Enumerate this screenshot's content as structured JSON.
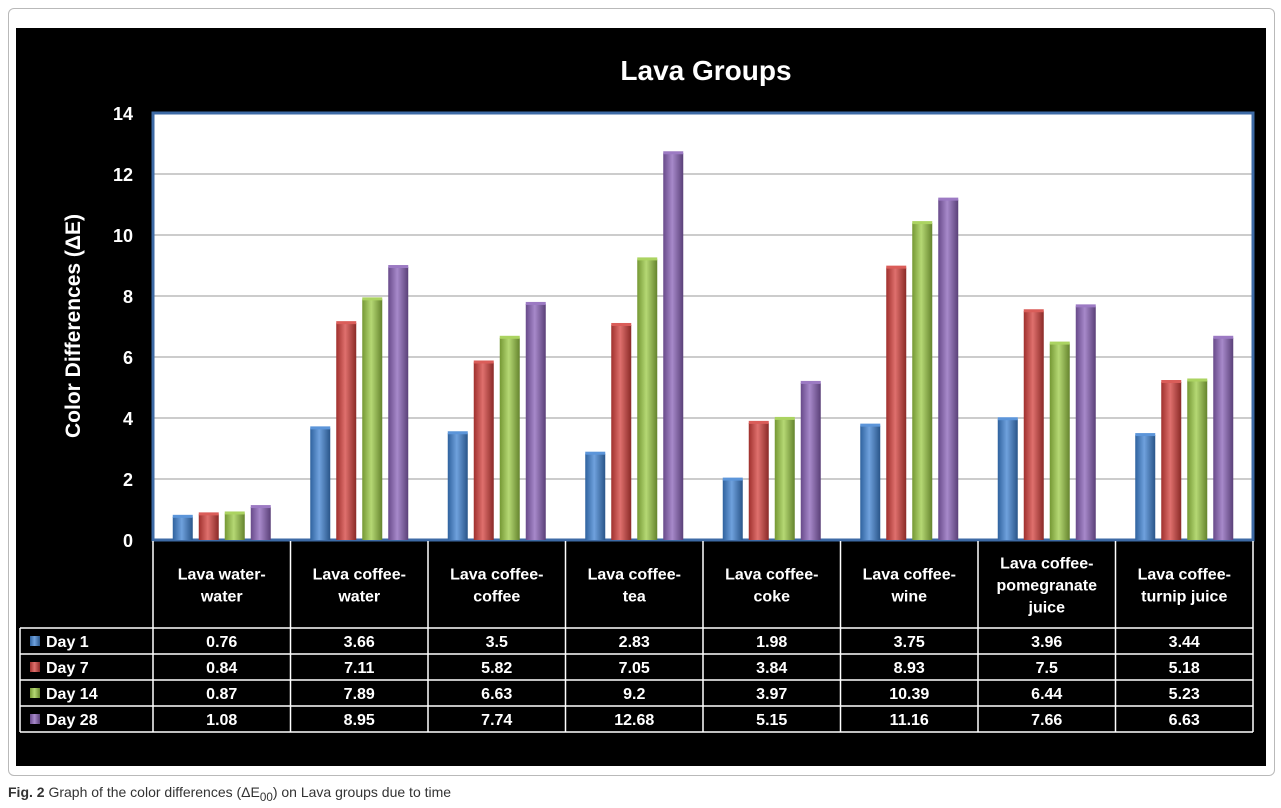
{
  "chart_data": {
    "type": "bar",
    "title": "Lava Groups",
    "ylabel": "Color  Differences (ΔE)",
    "ylim": [
      0,
      14
    ],
    "ytick_step": 2,
    "grid": true,
    "legend": "table-left",
    "categories": [
      [
        "Lava water-",
        "water"
      ],
      [
        "Lava coffee-",
        "water"
      ],
      [
        "Lava coffee-",
        "coffee"
      ],
      [
        "Lava coffee-",
        "tea"
      ],
      [
        "Lava coffee-",
        "coke"
      ],
      [
        "Lava coffee-",
        "wine"
      ],
      [
        "Lava coffee-",
        "pomegranate",
        "juice"
      ],
      [
        "Lava coffee-",
        "turnip juice"
      ]
    ],
    "series": [
      {
        "name": "Day 1",
        "color": "#3f82d2",
        "values": [
          0.76,
          3.66,
          3.5,
          2.83,
          1.98,
          3.75,
          3.96,
          3.44
        ]
      },
      {
        "name": "Day 7",
        "color": "#d4403c",
        "values": [
          0.84,
          7.11,
          5.82,
          7.05,
          3.84,
          8.93,
          7.5,
          5.18
        ]
      },
      {
        "name": "Day 14",
        "color": "#9ccb45",
        "values": [
          0.87,
          7.89,
          6.63,
          9.2,
          3.97,
          10.39,
          6.44,
          5.23
        ]
      },
      {
        "name": "Day 28",
        "color": "#8a62b8",
        "values": [
          1.08,
          8.95,
          7.74,
          12.68,
          5.15,
          11.16,
          7.66,
          6.63
        ]
      }
    ]
  },
  "caption": {
    "label": "Fig. 2",
    "text_before": "Graph of the color differences (ΔE",
    "subscript": "00",
    "text_after": ") on Lava groups due to time"
  }
}
